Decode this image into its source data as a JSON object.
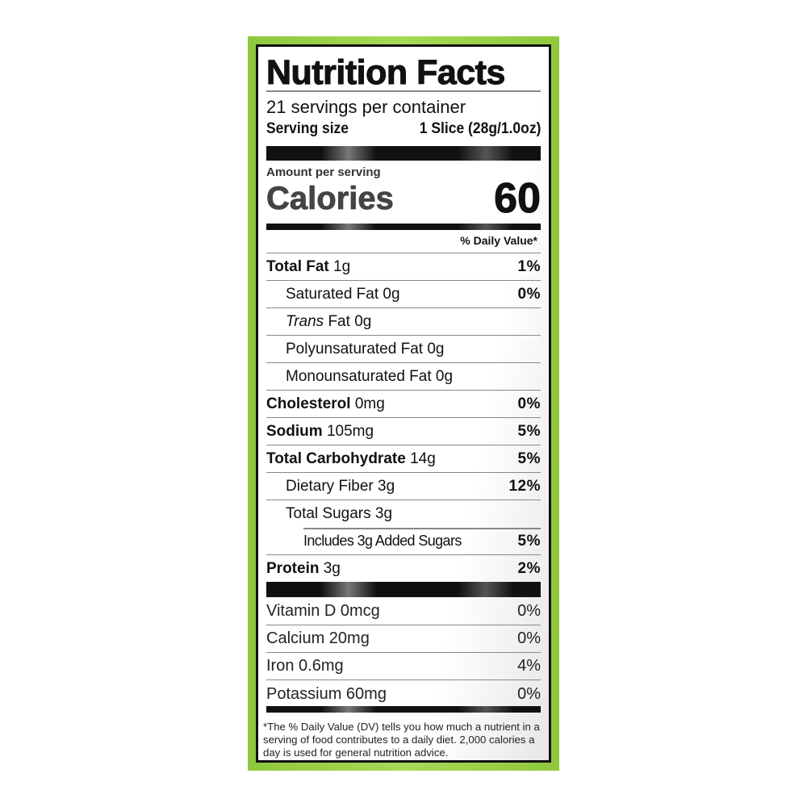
{
  "title": "Nutrition Facts",
  "servings_per_container": "21 servings per container",
  "serving_size_label": "Serving size",
  "serving_size_value": "1 Slice (28g/1.0oz)",
  "amount_per_serving": "Amount per serving",
  "calories_label": "Calories",
  "calories_value": "60",
  "daily_value_header": "% Daily Value*",
  "nutrients": [
    {
      "name": "Total Fat",
      "amount": "1g",
      "dv": "1%"
    },
    {
      "name": "Saturated Fat",
      "amount": "0g",
      "dv": "0%"
    },
    {
      "name": "Trans",
      "name2": "Fat",
      "amount": "0g",
      "dv": ""
    },
    {
      "name": "Polyunsaturated Fat",
      "amount": "0g",
      "dv": ""
    },
    {
      "name": "Monounsaturated Fat",
      "amount": "0g",
      "dv": ""
    },
    {
      "name": "Cholesterol",
      "amount": "0mg",
      "dv": "0%"
    },
    {
      "name": "Sodium",
      "amount": "105mg",
      "dv": "5%"
    },
    {
      "name": "Total Carbohydrate",
      "amount": "14g",
      "dv": "5%"
    },
    {
      "name": "Dietary Fiber",
      "amount": "3g",
      "dv": "12%"
    },
    {
      "name": "Total Sugars",
      "amount": "3g",
      "dv": ""
    },
    {
      "name": "Includes 3g Added Sugars",
      "amount": "",
      "dv": "5%"
    },
    {
      "name": "Protein",
      "amount": "3g",
      "dv": "2%"
    }
  ],
  "vitamins": [
    {
      "name": "Vitamin D 0mcg",
      "dv": "0%"
    },
    {
      "name": "Calcium 20mg",
      "dv": "0%"
    },
    {
      "name": "Iron 0.6mg",
      "dv": "4%"
    },
    {
      "name": "Potassium 60mg",
      "dv": "0%"
    }
  ],
  "footnote": "*The % Daily Value (DV) tells you how much a nutrient in a serving of food contributes to a daily diet. 2,000 calories a day is used for general nutrition advice.",
  "colors": {
    "frame": "#9ed14b",
    "ink": "#111111"
  }
}
